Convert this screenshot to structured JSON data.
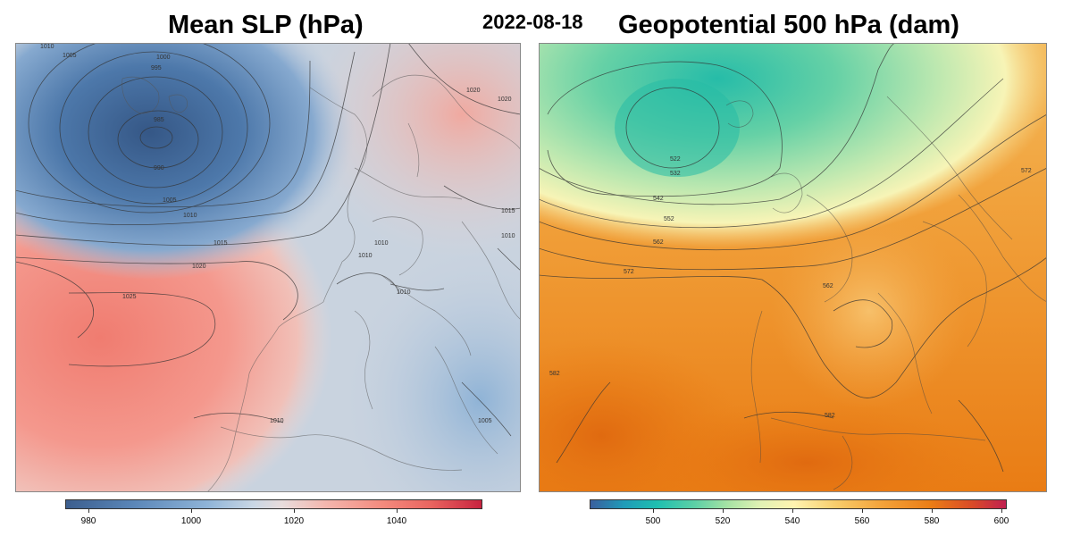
{
  "date": "2022-08-18",
  "slp": {
    "title": "Mean SLP (hPa)",
    "colorbar_ticks": [
      "980",
      "1000",
      "1020",
      "1040"
    ],
    "contour_labels": [
      "1010",
      "1005",
      "1000",
      "995",
      "985",
      "990",
      "1005",
      "1010",
      "1015",
      "1020",
      "1025",
      "1020",
      "1020",
      "1015",
      "1010",
      "1010",
      "1010",
      "1010",
      "1010",
      "1005"
    ],
    "colors": {
      "low": "#3c5e8e",
      "mid": "#e6dcdc",
      "high": "#c8233f"
    }
  },
  "geo": {
    "title": "Geopotential 500 hPa (dam)",
    "colorbar_ticks": [
      "500",
      "520",
      "540",
      "560",
      "580",
      "600"
    ],
    "contour_labels": [
      "522",
      "532",
      "542",
      "552",
      "562",
      "572",
      "562",
      "572",
      "582",
      "582"
    ],
    "colors": {
      "low": "#1fbfb0",
      "mid": "#fff3b0",
      "high": "#eb7d16"
    }
  }
}
